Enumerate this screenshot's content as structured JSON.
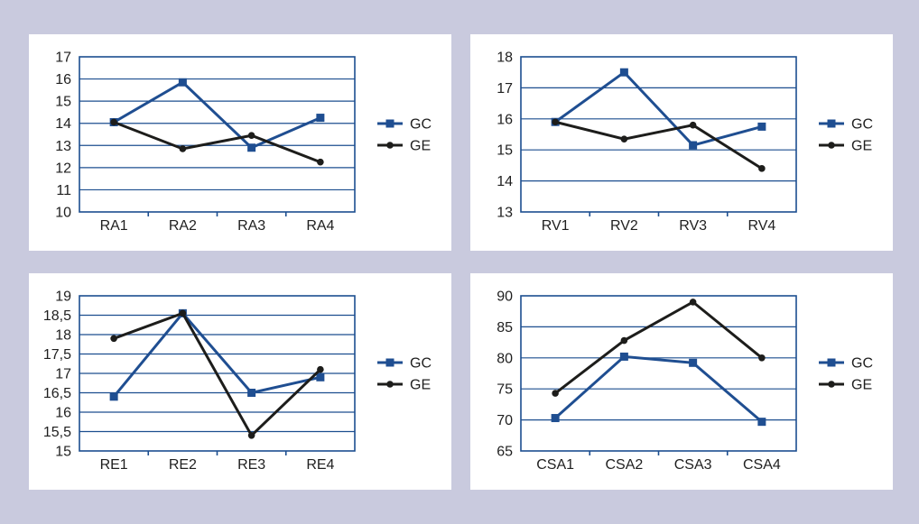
{
  "page": {
    "background_color": "#c9cade",
    "panel_background_color": "#ffffff"
  },
  "colors": {
    "gc": "#1f4e91",
    "ge": "#1d1d1b",
    "grid": "#1c4e8f",
    "frame": "#1c4e8f",
    "text": "#1f1f1f"
  },
  "chart_data": [
    {
      "type": "line",
      "title": "",
      "xlabel": "",
      "ylabel": "",
      "categories": [
        "RA1",
        "RA2",
        "RA3",
        "RA4"
      ],
      "series": [
        {
          "name": "GC",
          "color_key": "gc",
          "marker": "square",
          "values": [
            14.05,
            15.85,
            12.9,
            14.25
          ]
        },
        {
          "name": "GE",
          "color_key": "ge",
          "marker": "circle",
          "values": [
            14.05,
            12.85,
            13.45,
            12.25
          ]
        }
      ],
      "ylim": [
        10,
        17
      ],
      "ytick_step": 1,
      "ytick_labels": [
        "17",
        "16",
        "15",
        "14",
        "13",
        "12",
        "11",
        "10"
      ],
      "grid": "horizontal",
      "legend_position": "right"
    },
    {
      "type": "line",
      "title": "",
      "xlabel": "",
      "ylabel": "",
      "categories": [
        "RV1",
        "RV2",
        "RV3",
        "RV4"
      ],
      "series": [
        {
          "name": "GC",
          "color_key": "gc",
          "marker": "square",
          "values": [
            15.9,
            17.5,
            15.15,
            15.75
          ]
        },
        {
          "name": "GE",
          "color_key": "ge",
          "marker": "circle",
          "values": [
            15.9,
            15.35,
            15.8,
            14.4
          ]
        }
      ],
      "ylim": [
        13,
        18
      ],
      "ytick_step": 1,
      "ytick_labels": [
        "18",
        "17",
        "16",
        "15",
        "14",
        "13"
      ],
      "grid": "horizontal",
      "legend_position": "right"
    },
    {
      "type": "line",
      "title": "",
      "xlabel": "",
      "ylabel": "",
      "categories": [
        "RE1",
        "RE2",
        "RE3",
        "RE4"
      ],
      "series": [
        {
          "name": "GC",
          "color_key": "gc",
          "marker": "square",
          "values": [
            16.4,
            18.55,
            16.5,
            16.9
          ]
        },
        {
          "name": "GE",
          "color_key": "ge",
          "marker": "circle",
          "values": [
            17.9,
            18.55,
            15.4,
            17.1
          ]
        }
      ],
      "ylim": [
        15,
        19
      ],
      "ytick_step": 0.5,
      "ytick_labels": [
        "19",
        "18,5",
        "18",
        "17,5",
        "17",
        "16,5",
        "16",
        "15,5",
        "15"
      ],
      "grid": "horizontal",
      "legend_position": "right"
    },
    {
      "type": "line",
      "title": "",
      "xlabel": "",
      "ylabel": "",
      "categories": [
        "CSA1",
        "CSA2",
        "CSA3",
        "CSA4"
      ],
      "series": [
        {
          "name": "GC",
          "color_key": "gc",
          "marker": "square",
          "values": [
            70.3,
            80.2,
            79.2,
            69.7
          ]
        },
        {
          "name": "GE",
          "color_key": "ge",
          "marker": "circle",
          "values": [
            74.3,
            82.8,
            89.0,
            80.0
          ]
        }
      ],
      "ylim": [
        65,
        90
      ],
      "ytick_step": 5,
      "ytick_labels": [
        "90",
        "85",
        "80",
        "75",
        "70",
        "65"
      ],
      "grid": "horizontal",
      "legend_position": "right"
    }
  ]
}
